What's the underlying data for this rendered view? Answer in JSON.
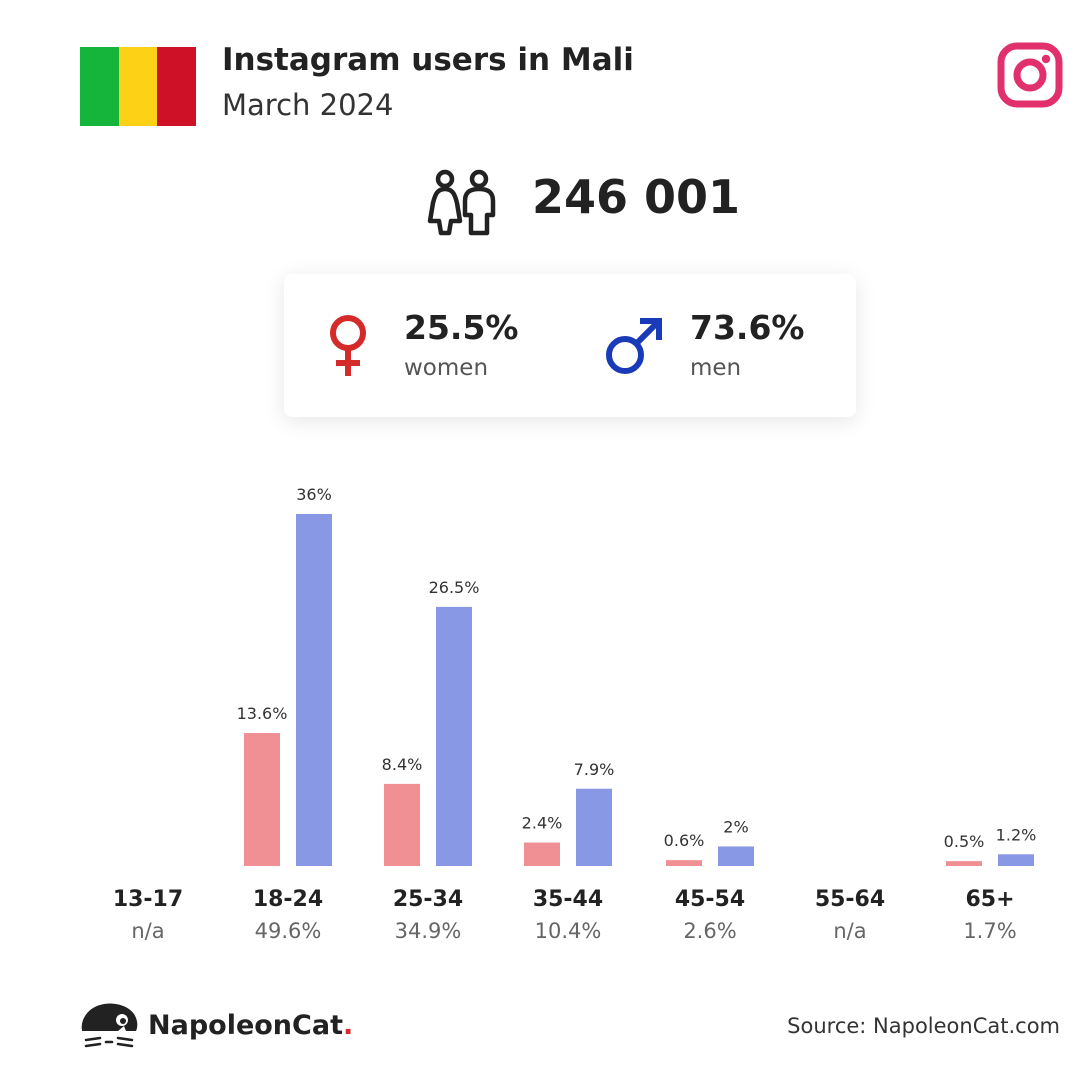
{
  "header": {
    "title": "Instagram users in Mali",
    "subtitle": "March 2024",
    "flag_colors": [
      "#14b53a",
      "#fcd116",
      "#ce1126"
    ],
    "instagram_color": "#e1306c"
  },
  "total": {
    "icon": "people-icon",
    "value": "246 001"
  },
  "gender": {
    "women": {
      "icon": "venus-icon",
      "percent": "25.5%",
      "label": "women",
      "color": "#d42a2a"
    },
    "men": {
      "icon": "mars-icon",
      "percent": "73.6%",
      "label": "men",
      "color": "#1a3bb8"
    }
  },
  "chart_data": {
    "type": "bar",
    "categories": [
      "13-17",
      "18-24",
      "25-34",
      "35-44",
      "45-54",
      "55-64",
      "65+"
    ],
    "category_totals": [
      "n/a",
      "49.6%",
      "34.9%",
      "10.4%",
      "2.6%",
      "n/a",
      "1.7%"
    ],
    "series": [
      {
        "key": "women",
        "color": "#f09095",
        "values": [
          null,
          13.6,
          8.4,
          2.4,
          0.6,
          null,
          0.5
        ],
        "labels": [
          "",
          "13.6%",
          "8.4%",
          "2.4%",
          "0.6%",
          "",
          "0.5%"
        ]
      },
      {
        "key": "men",
        "color": "#8898e4",
        "values": [
          null,
          36,
          26.5,
          7.9,
          2,
          null,
          1.2
        ],
        "labels": [
          "",
          "36%",
          "26.5%",
          "7.9%",
          "2%",
          "",
          "1.2%"
        ]
      }
    ],
    "title": "",
    "xlabel": "",
    "ylabel": "",
    "ylim": [
      0,
      36
    ],
    "grid": false,
    "legend": "none"
  },
  "footer": {
    "logo_icon": "napoleoncat-logo-icon",
    "brand": "NapoleonCat",
    "brand_dot": ".",
    "source": "Source: NapoleonCat.com"
  }
}
